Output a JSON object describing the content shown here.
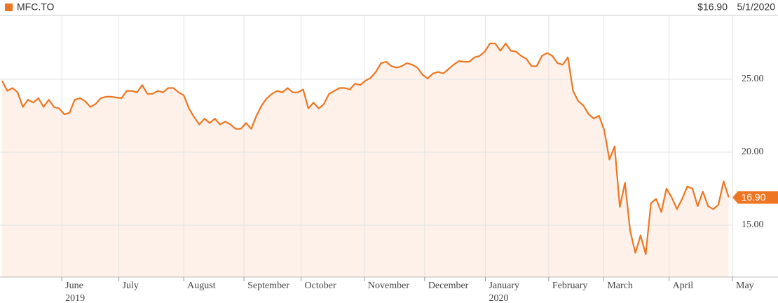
{
  "chart_data": {
    "type": "line",
    "price": "$16.90",
    "date": "5/1/2020",
    "last_value_label": "16.90",
    "series": [
      {
        "name": "MFC.TO",
        "color": "#ee7623",
        "area_color": "#fdf1e9",
        "values": [
          24.9,
          24.2,
          24.4,
          24.1,
          23.1,
          23.6,
          23.4,
          23.7,
          23.1,
          23.6,
          23.1,
          23.0,
          22.6,
          22.7,
          23.6,
          23.7,
          23.5,
          23.1,
          23.3,
          23.7,
          23.8,
          23.8,
          23.75,
          23.7,
          24.2,
          24.2,
          24.1,
          24.6,
          24.0,
          24.0,
          24.2,
          24.1,
          24.4,
          24.4,
          24.1,
          23.9,
          23.0,
          22.4,
          21.9,
          22.3,
          22.0,
          22.3,
          21.9,
          22.1,
          21.9,
          21.6,
          21.6,
          22.0,
          21.6,
          22.5,
          23.2,
          23.7,
          24.0,
          24.2,
          24.1,
          24.4,
          24.1,
          24.1,
          24.3,
          23.0,
          23.4,
          23.0,
          23.3,
          24.0,
          24.2,
          24.4,
          24.4,
          24.3,
          24.7,
          24.6,
          24.9,
          25.1,
          25.5,
          26.1,
          26.2,
          25.9,
          25.8,
          25.9,
          26.1,
          26.0,
          25.8,
          25.3,
          25.05,
          25.4,
          25.5,
          25.4,
          25.7,
          26.0,
          26.25,
          26.2,
          26.2,
          26.5,
          26.6,
          26.9,
          27.45,
          27.45,
          26.95,
          27.45,
          26.95,
          26.9,
          26.6,
          26.4,
          25.9,
          25.9,
          26.6,
          26.8,
          26.6,
          26.1,
          26.0,
          26.5,
          24.2,
          23.5,
          23.2,
          22.6,
          22.3,
          22.5,
          21.5,
          19.5,
          20.4,
          16.25,
          17.9,
          14.6,
          13.1,
          14.3,
          13.0,
          16.5,
          16.8,
          15.9,
          17.5,
          16.9,
          16.1,
          16.8,
          17.65,
          17.5,
          16.3,
          17.3,
          16.3,
          16.1,
          16.4,
          18.0,
          16.9
        ]
      }
    ],
    "xlim": [
      -0.4,
      140.7
    ],
    "xticks": [
      {
        "value": 11.5,
        "label": "June",
        "year": "2019"
      },
      {
        "value": 22.5,
        "label": "July"
      },
      {
        "value": 35,
        "label": "August"
      },
      {
        "value": 46.6,
        "label": "September"
      },
      {
        "value": 57.6,
        "label": "October"
      },
      {
        "value": 69.8,
        "label": "November"
      },
      {
        "value": 81.4,
        "label": "December"
      },
      {
        "value": 93.1,
        "label": "January",
        "year": "2020"
      },
      {
        "value": 105.3,
        "label": "February"
      },
      {
        "value": 115.9,
        "label": "March"
      },
      {
        "value": 128.5,
        "label": "April"
      },
      {
        "value": 140.7,
        "label": "May"
      }
    ],
    "ylim": [
      11.44,
      29.375
    ],
    "yticks": [
      {
        "value": 15,
        "label": "15.00"
      },
      {
        "value": 20,
        "label": "20.00"
      },
      {
        "value": 25,
        "label": "25.00"
      }
    ],
    "grid": true
  }
}
